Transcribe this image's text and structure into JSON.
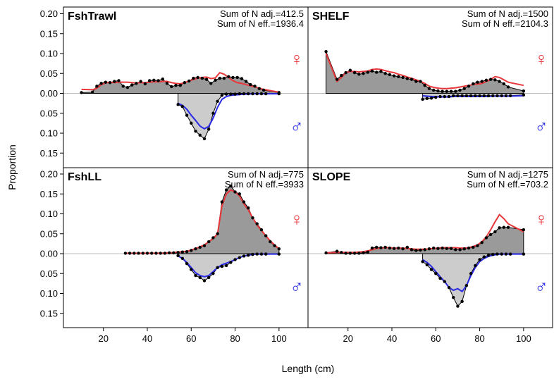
{
  "chart_data": {
    "type": "line",
    "xlabel": "Length (cm)",
    "ylabel": "Proportion",
    "xlim": [
      5,
      110
    ],
    "xticks": [
      20,
      40,
      60,
      80,
      100
    ],
    "yticks_upper": [
      0.2,
      0.15,
      0.1,
      0.05,
      0.0
    ],
    "yticks_lower": [
      0.05,
      0.1,
      0.15
    ],
    "ylim_upper": [
      0,
      0.21
    ],
    "ylim_lower": [
      0,
      0.18
    ],
    "fill_female": "#9a9a9a",
    "fill_male": "#cccccc",
    "observed_color": "#000000",
    "expected_female_color": "#e8363a",
    "expected_male_color": "#2a2ae6",
    "female_symbol": "♀",
    "male_symbol": "♂",
    "panels": [
      {
        "title": "FshTrawl",
        "n_adj": "Sum of N adj.=412.5",
        "n_eff": "Sum of N eff.=1936.4",
        "female": {
          "x": [
            10,
            15,
            17,
            19,
            21,
            23,
            25,
            27,
            29,
            31,
            33,
            35,
            37,
            39,
            41,
            43,
            45,
            47,
            49,
            51,
            53,
            55,
            57,
            59,
            61,
            63,
            65,
            67,
            69,
            71,
            73,
            75,
            77,
            79,
            81,
            83,
            85,
            87,
            89,
            91,
            93,
            100
          ],
          "observed": [
            0.002,
            0.003,
            0.018,
            0.025,
            0.028,
            0.027,
            0.03,
            0.032,
            0.018,
            0.015,
            0.021,
            0.025,
            0.03,
            0.024,
            0.032,
            0.033,
            0.032,
            0.036,
            0.025,
            0.017,
            0.02,
            0.02,
            0.027,
            0.031,
            0.038,
            0.04,
            0.038,
            0.035,
            0.025,
            0.033,
            0.038,
            0.038,
            0.042,
            0.04,
            0.04,
            0.037,
            0.03,
            0.022,
            0.018,
            0.012,
            0.008,
            0.002
          ],
          "expected": [
            0.01,
            0.009,
            0.013,
            0.022,
            0.026,
            0.028,
            0.027,
            0.028,
            0.028,
            0.028,
            0.027,
            0.026,
            0.027,
            0.027,
            0.028,
            0.029,
            0.029,
            0.03,
            0.03,
            0.027,
            0.025,
            0.024,
            0.027,
            0.031,
            0.035,
            0.038,
            0.04,
            0.041,
            0.037,
            0.039,
            0.052,
            0.048,
            0.04,
            0.032,
            0.027,
            0.025,
            0.022,
            0.019,
            0.016,
            0.013,
            0.01,
            0.003
          ]
        },
        "male": {
          "x": [
            54,
            56,
            58,
            60,
            62,
            64,
            66,
            68,
            70,
            72,
            74,
            76,
            78,
            80,
            82,
            84,
            86,
            88,
            90,
            92,
            94,
            100
          ],
          "observed": [
            0.028,
            0.033,
            0.055,
            0.075,
            0.095,
            0.105,
            0.114,
            0.09,
            0.05,
            0.02,
            0.005,
            0.002,
            0.002,
            0.002,
            0.001,
            0.001,
            0.001,
            0.001,
            0.001,
            0.001,
            0.001,
            0.001
          ],
          "expected": [
            0.025,
            0.03,
            0.04,
            0.055,
            0.068,
            0.082,
            0.089,
            0.083,
            0.062,
            0.035,
            0.015,
            0.008,
            0.005,
            0.004,
            0.003,
            0.002,
            0.002,
            0.001,
            0.001,
            0.001,
            0.001,
            0.001
          ]
        }
      },
      {
        "title": "SHELF",
        "n_adj": "Sum of N adj.=1500",
        "n_eff": "Sum of N eff.=2104.3",
        "female": {
          "x": [
            10,
            15,
            17,
            19,
            21,
            23,
            25,
            27,
            29,
            31,
            33,
            35,
            37,
            39,
            41,
            43,
            45,
            47,
            49,
            51,
            53,
            55,
            57,
            59,
            61,
            63,
            65,
            67,
            69,
            71,
            73,
            75,
            77,
            79,
            81,
            83,
            85,
            87,
            89,
            91,
            93,
            100
          ],
          "observed": [
            0.105,
            0.035,
            0.045,
            0.052,
            0.058,
            0.052,
            0.048,
            0.05,
            0.053,
            0.056,
            0.053,
            0.055,
            0.05,
            0.047,
            0.044,
            0.042,
            0.04,
            0.037,
            0.035,
            0.03,
            0.03,
            0.02,
            0.012,
            0.008,
            0.006,
            0.005,
            0.005,
            0.005,
            0.005,
            0.008,
            0.012,
            0.018,
            0.024,
            0.028,
            0.03,
            0.033,
            0.035,
            0.034,
            0.03,
            0.024,
            0.016,
            0.006
          ],
          "expected": [
            0.1,
            0.03,
            0.04,
            0.052,
            0.055,
            0.055,
            0.054,
            0.055,
            0.056,
            0.06,
            0.061,
            0.06,
            0.057,
            0.054,
            0.052,
            0.048,
            0.045,
            0.041,
            0.038,
            0.034,
            0.03,
            0.025,
            0.018,
            0.015,
            0.013,
            0.012,
            0.012,
            0.013,
            0.014,
            0.016,
            0.018,
            0.02,
            0.022,
            0.023,
            0.025,
            0.03,
            0.035,
            0.042,
            0.04,
            0.034,
            0.028,
            0.02
          ]
        },
        "male": {
          "x": [
            54,
            56,
            58,
            60,
            62,
            64,
            66,
            68,
            70,
            72,
            74,
            76,
            78,
            80,
            82,
            84,
            86,
            88,
            90,
            92,
            94,
            100
          ],
          "observed": [
            0.015,
            0.013,
            0.012,
            0.01,
            0.008,
            0.008,
            0.008,
            0.006,
            0.006,
            0.006,
            0.006,
            0.006,
            0.006,
            0.006,
            0.006,
            0.006,
            0.006,
            0.006,
            0.006,
            0.006,
            0.006,
            0.004
          ],
          "expected": [
            0.006,
            0.007,
            0.008,
            0.008,
            0.009,
            0.009,
            0.009,
            0.008,
            0.008,
            0.008,
            0.008,
            0.008,
            0.008,
            0.008,
            0.008,
            0.008,
            0.007,
            0.007,
            0.007,
            0.007,
            0.007,
            0.006
          ]
        }
      },
      {
        "title": "FshLL",
        "n_adj": "Sum of N adj.=775",
        "n_eff": "Sum of N eff.=3933",
        "female": {
          "x": [
            30,
            32,
            34,
            36,
            38,
            40,
            42,
            44,
            46,
            48,
            50,
            52,
            54,
            56,
            58,
            60,
            62,
            64,
            66,
            68,
            70,
            72,
            74,
            76,
            78,
            80,
            82,
            84,
            86,
            88,
            90,
            92,
            94,
            96,
            98,
            100
          ],
          "observed": [
            0.001,
            0.001,
            0.001,
            0.001,
            0.001,
            0.001,
            0.001,
            0.001,
            0.001,
            0.001,
            0.002,
            0.002,
            0.003,
            0.004,
            0.005,
            0.008,
            0.012,
            0.016,
            0.02,
            0.03,
            0.04,
            0.05,
            0.13,
            0.16,
            0.17,
            0.155,
            0.15,
            0.13,
            0.115,
            0.09,
            0.075,
            0.06,
            0.045,
            0.03,
            0.02,
            0.012
          ],
          "expected": [
            0.001,
            0.001,
            0.001,
            0.001,
            0.001,
            0.001,
            0.001,
            0.001,
            0.001,
            0.002,
            0.002,
            0.003,
            0.004,
            0.005,
            0.006,
            0.009,
            0.013,
            0.017,
            0.022,
            0.03,
            0.038,
            0.05,
            0.12,
            0.15,
            0.16,
            0.155,
            0.145,
            0.125,
            0.11,
            0.09,
            0.072,
            0.058,
            0.045,
            0.032,
            0.022,
            0.012
          ]
        },
        "male": {
          "x": [
            54,
            56,
            58,
            60,
            62,
            64,
            66,
            68,
            70,
            72,
            74,
            76,
            78,
            80,
            82,
            84,
            86,
            88,
            90,
            92,
            94,
            100
          ],
          "observed": [
            0.005,
            0.012,
            0.025,
            0.04,
            0.055,
            0.06,
            0.068,
            0.06,
            0.05,
            0.035,
            0.032,
            0.03,
            0.022,
            0.015,
            0.01,
            0.006,
            0.004,
            0.002,
            0.001,
            0.001,
            0.001,
            0.001
          ],
          "expected": [
            0.006,
            0.012,
            0.022,
            0.035,
            0.048,
            0.055,
            0.058,
            0.055,
            0.045,
            0.035,
            0.028,
            0.024,
            0.02,
            0.015,
            0.01,
            0.006,
            0.004,
            0.002,
            0.001,
            0.001,
            0.001,
            0.001
          ]
        }
      },
      {
        "title": "SLOPE",
        "n_adj": "Sum of N adj.=1275",
        "n_eff": "Sum of N eff.=703.2",
        "female": {
          "x": [
            10,
            15,
            17,
            19,
            21,
            23,
            25,
            27,
            29,
            31,
            33,
            35,
            37,
            39,
            41,
            43,
            45,
            47,
            49,
            51,
            53,
            55,
            57,
            59,
            61,
            63,
            65,
            67,
            69,
            71,
            73,
            75,
            77,
            79,
            81,
            83,
            85,
            87,
            89,
            91,
            93,
            100
          ],
          "observed": [
            0.002,
            0.006,
            0.003,
            0.001,
            0.001,
            0.001,
            0.001,
            0.002,
            0.004,
            0.014,
            0.016,
            0.015,
            0.016,
            0.014,
            0.013,
            0.014,
            0.012,
            0.016,
            0.01,
            0.008,
            0.009,
            0.01,
            0.012,
            0.014,
            0.013,
            0.014,
            0.013,
            0.013,
            0.01,
            0.01,
            0.012,
            0.014,
            0.016,
            0.02,
            0.028,
            0.04,
            0.048,
            0.055,
            0.065,
            0.066,
            0.066,
            0.06
          ],
          "expected": [
            0.002,
            0.003,
            0.003,
            0.003,
            0.003,
            0.003,
            0.004,
            0.005,
            0.007,
            0.01,
            0.013,
            0.014,
            0.015,
            0.015,
            0.014,
            0.014,
            0.014,
            0.013,
            0.012,
            0.011,
            0.011,
            0.011,
            0.012,
            0.013,
            0.014,
            0.015,
            0.015,
            0.015,
            0.015,
            0.014,
            0.014,
            0.015,
            0.018,
            0.022,
            0.03,
            0.042,
            0.06,
            0.08,
            0.098,
            0.088,
            0.075,
            0.055
          ]
        },
        "male": {
          "x": [
            54,
            56,
            58,
            60,
            62,
            64,
            66,
            68,
            70,
            72,
            74,
            76,
            78,
            80,
            82,
            84,
            86,
            88,
            90,
            92,
            94,
            100
          ],
          "observed": [
            0.02,
            0.028,
            0.04,
            0.05,
            0.062,
            0.07,
            0.085,
            0.11,
            0.132,
            0.12,
            0.08,
            0.05,
            0.03,
            0.015,
            0.008,
            0.004,
            0.002,
            0.001,
            0.001,
            0.001,
            0.001,
            0.001
          ],
          "expected": [
            0.015,
            0.022,
            0.032,
            0.045,
            0.058,
            0.07,
            0.085,
            0.092,
            0.088,
            0.095,
            0.08,
            0.055,
            0.035,
            0.02,
            0.012,
            0.007,
            0.004,
            0.002,
            0.001,
            0.001,
            0.001,
            0.001
          ]
        }
      }
    ]
  }
}
